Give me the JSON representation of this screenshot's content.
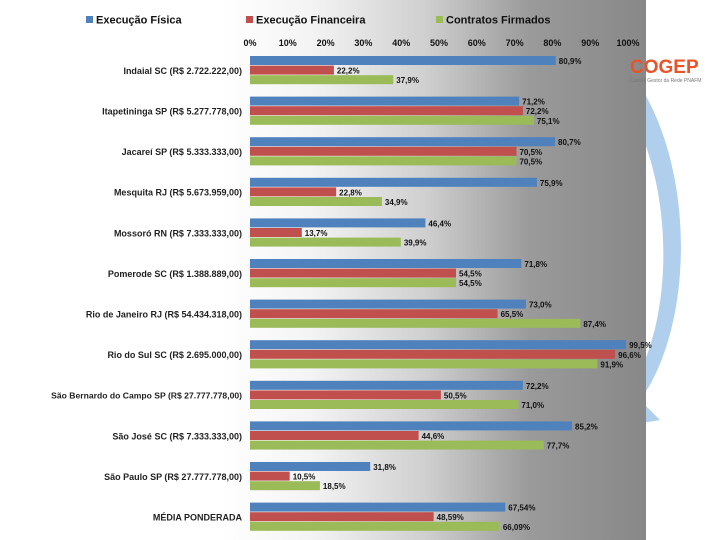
{
  "logo": {
    "text": "COGEP",
    "subtitle": "Comitê Gestor da Rede PNAFM"
  },
  "chart_data": {
    "type": "bar",
    "orientation": "horizontal",
    "title": "",
    "xlabel": "",
    "ylabel": "",
    "xlim": [
      0,
      100
    ],
    "x_ticks": [
      "0%",
      "10%",
      "20%",
      "30%",
      "40%",
      "50%",
      "60%",
      "70%",
      "80%",
      "90%",
      "100%"
    ],
    "grid": false,
    "legend_position": "top",
    "categories": [
      "Indaial SC (R$ 2.722.222,00)",
      "Itapetininga SP (R$ 5.277.778,00)",
      "Jacareí SP (R$ 5.333.333,00)",
      "Mesquita RJ (R$ 5.673.959,00)",
      "Mossoró RN (R$ 7.333.333,00)",
      "Pomerode SC (R$ 1.388.889,00)",
      "Rio de Janeiro RJ (R$ 54.434.318,00)",
      "Rio do Sul SC (R$ 2.695.000,00)",
      "São Bernardo do Campo SP (R$ 27.777.778,00)",
      "São José SC (R$ 7.333.333,00)",
      "São Paulo SP (R$ 27.777.778,00)",
      "MÉDIA PONDERADA"
    ],
    "series": [
      {
        "name": "Execução Física",
        "color": "#4f81bd",
        "values": [
          80.9,
          71.2,
          80.7,
          75.9,
          46.4,
          71.8,
          73.0,
          99.5,
          72.2,
          85.2,
          31.8,
          67.54
        ],
        "labels": [
          "80,9%",
          "71,2%",
          "80,7%",
          "75,9%",
          "46,4%",
          "71,8%",
          "73,0%",
          "99,5%",
          "72,2%",
          "85,2%",
          "31,8%",
          "67,54%"
        ]
      },
      {
        "name": "Execução Financeira",
        "color": "#c0504d",
        "values": [
          22.2,
          72.2,
          70.5,
          22.8,
          13.7,
          54.5,
          65.5,
          96.6,
          50.5,
          44.6,
          10.5,
          48.59
        ],
        "labels": [
          "22,2%",
          "72,2%",
          "70,5%",
          "22,8%",
          "13,7%",
          "54,5%",
          "65,5%",
          "96,6%",
          "50,5%",
          "44,6%",
          "10,5%",
          "48,59%"
        ]
      },
      {
        "name": "Contratos Firmados",
        "color": "#9bbb59",
        "values": [
          37.9,
          75.1,
          70.5,
          34.9,
          39.9,
          54.5,
          87.4,
          91.9,
          71.0,
          77.7,
          18.5,
          66.09
        ],
        "labels": [
          "37,9%",
          "75,1%",
          "70,5%",
          "34,9%",
          "39,9%",
          "54,5%",
          "87,4%",
          "91,9%",
          "71,0%",
          "77,7%",
          "18,5%",
          "66,09%"
        ]
      }
    ]
  }
}
